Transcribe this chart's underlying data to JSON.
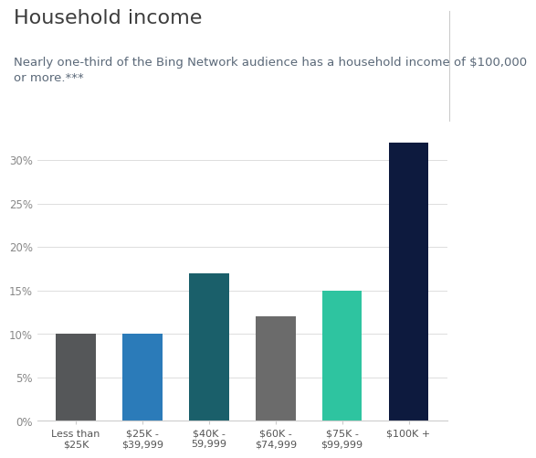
{
  "title": "Household income",
  "subtitle": "Nearly one-third of the Bing Network audience has a household income of $100,000\nor more.***",
  "categories": [
    "Less than\n$25K",
    "$25K -\n$39,999",
    "$40K -\n59,999",
    "$60K -\n$74,999",
    "$75K -\n$99,999",
    "$100K +"
  ],
  "values": [
    0.1,
    0.1,
    0.17,
    0.12,
    0.15,
    0.32
  ],
  "bar_colors": [
    "#555759",
    "#2b7bb9",
    "#1a5f6a",
    "#6b6b6b",
    "#2ec4a0",
    "#0d1a3e"
  ],
  "ylim": [
    0,
    0.345
  ],
  "yticks": [
    0.0,
    0.05,
    0.1,
    0.15,
    0.2,
    0.25,
    0.3
  ],
  "ytick_labels": [
    "0%",
    "5%",
    "10%",
    "15%",
    "20%",
    "25%",
    "30%"
  ],
  "title_color": "#3d3d3d",
  "subtitle_color": "#5a6878",
  "title_fontsize": 16,
  "subtitle_fontsize": 9.5,
  "tick_fontsize": 8.5,
  "xtick_fontsize": 8,
  "background_color": "#ffffff",
  "bar_width": 0.6,
  "grid_color": "#d8d8d8",
  "spine_color": "#cccccc"
}
